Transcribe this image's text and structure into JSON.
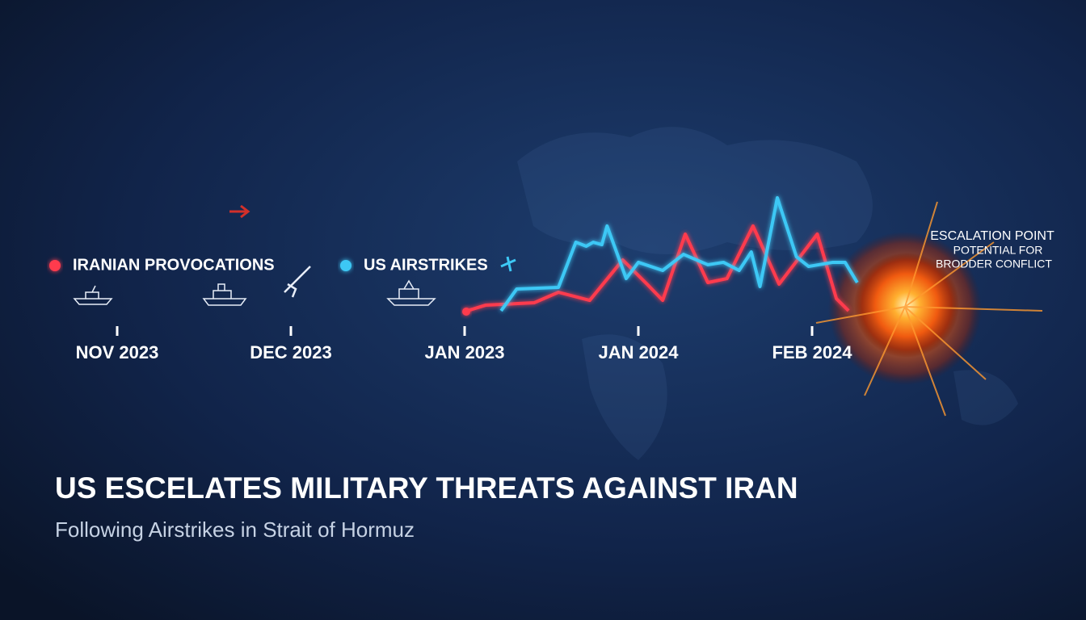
{
  "chart_data": {
    "type": "line",
    "title": "US ESCELATES MILITARY THREATS AGAINST IRAN",
    "subtitle": "Following Airstrikes in Strait of Hormuz",
    "annotations": [
      "ESCALATION POINT",
      "POTENTIAL FOR",
      "BRODDER CONFLICT"
    ],
    "xlim": [
      0,
      4.5
    ],
    "xticks": [
      {
        "value": 0,
        "label": "NOV 2023"
      },
      {
        "value": 1,
        "label": "DEC 2023"
      },
      {
        "value": 2,
        "label": "JAN 2023"
      },
      {
        "value": 3,
        "label": "JAN 2024"
      },
      {
        "value": 4,
        "label": "FEB 2024"
      }
    ],
    "ylim": [
      0,
      100
    ],
    "series": [
      {
        "name": "IRANIAN PROVOCATIONS",
        "color": "#ff3b4e",
        "x": [
          2.0,
          2.12,
          2.4,
          2.54,
          2.72,
          2.91,
          3.05,
          3.14,
          3.27,
          3.4,
          3.51,
          3.66,
          3.81,
          4.03,
          4.14,
          4.21
        ],
        "values": [
          0,
          5.3,
          7.3,
          16,
          9.3,
          42.7,
          22.7,
          9.3,
          64,
          24,
          27.3,
          70.7,
          22.7,
          64,
          10.7,
          0.7
        ]
      },
      {
        "name": "US AIRSTRIKES",
        "color": "#3dc8f5",
        "x": [
          2.21,
          2.3,
          2.54,
          2.64,
          2.7,
          2.74,
          2.79,
          2.82,
          2.93,
          3.0,
          3.14,
          3.26,
          3.4,
          3.49,
          3.58,
          3.65,
          3.7,
          3.8,
          3.91,
          3.98,
          4.12,
          4.19,
          4.26
        ],
        "values": [
          0.7,
          18.7,
          20,
          57.3,
          54,
          57.3,
          55.3,
          70.7,
          27.3,
          40.7,
          34,
          47.3,
          38.7,
          40.7,
          34,
          49.3,
          20.7,
          94,
          45.3,
          37.3,
          40.7,
          40.7,
          24
        ]
      }
    ]
  }
}
